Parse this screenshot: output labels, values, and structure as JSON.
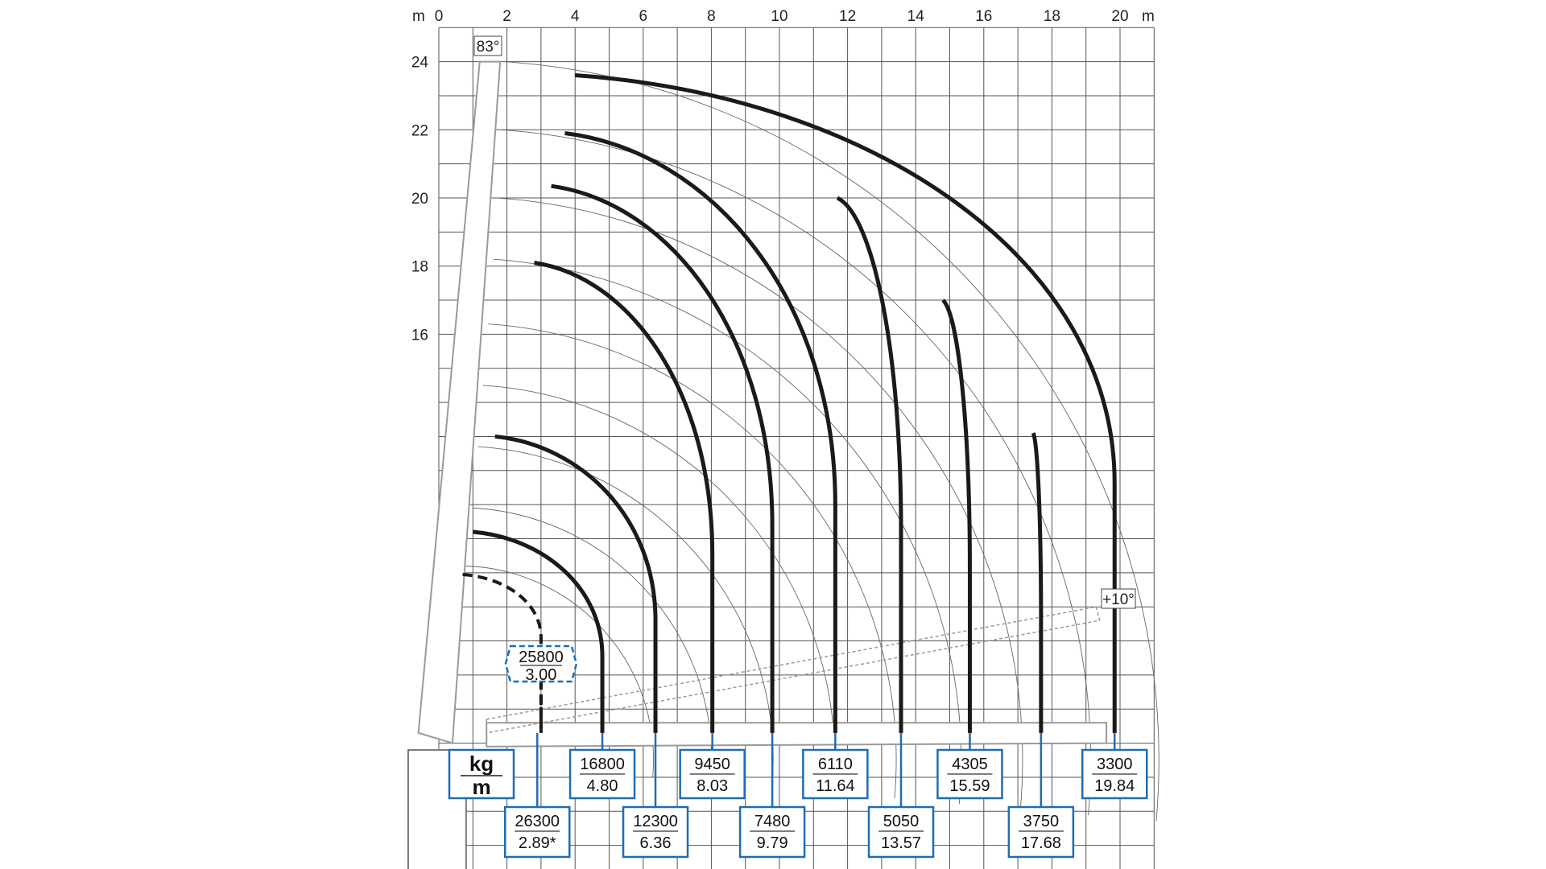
{
  "chart_data": {
    "type": "line",
    "title": "",
    "x_unit_label": "m",
    "y_unit_label": "m",
    "xlim": [
      0,
      21
    ],
    "ylim": [
      0,
      25
    ],
    "grid": true,
    "x_ticks": [
      "0",
      "2",
      "4",
      "6",
      "8",
      "10",
      "12",
      "14",
      "16",
      "18",
      "20"
    ],
    "y_ticks": [
      "16",
      "18",
      "20",
      "22",
      "24"
    ],
    "angle_labels": {
      "max_angle": "83°",
      "min_angle": "+10°"
    },
    "legend": {
      "unit_top": "kg",
      "unit_bottom": "m"
    },
    "colors": {
      "curve": "#1a1a1a",
      "label_box": "#1f6db3",
      "grid": "#555555",
      "boom": "#9a9a9a"
    },
    "load_curves": [
      {
        "load_kg": "25800",
        "reach_m": "3.00",
        "dashed": true,
        "start": [
          0.7,
          8.95
        ],
        "knee_y": 7.1,
        "reach": 3.0
      },
      {
        "load_kg": "26300",
        "reach_m": "2.89*",
        "dashed": false,
        "reach": 2.89,
        "row": 2
      },
      {
        "load_kg": "16800",
        "reach_m": "4.80",
        "start": [
          1.0,
          10.2
        ],
        "reach": 4.8,
        "row": 1
      },
      {
        "load_kg": "12300",
        "reach_m": "6.36",
        "start": [
          1.65,
          13.0
        ],
        "reach": 6.36,
        "row": 2
      },
      {
        "load_kg": "9450",
        "reach_m": "8.03",
        "start": [
          2.8,
          18.1
        ],
        "reach": 8.03,
        "row": 1
      },
      {
        "load_kg": "7480",
        "reach_m": "9.79",
        "start": [
          3.3,
          20.35
        ],
        "reach": 9.79,
        "row": 2
      },
      {
        "load_kg": "6110",
        "reach_m": "11.64",
        "start": [
          3.7,
          21.9
        ],
        "reach": 11.64,
        "row": 1
      },
      {
        "load_kg": "5050",
        "reach_m": "13.57",
        "start": [
          11.7,
          20.0
        ],
        "reach": 13.57,
        "row": 2
      },
      {
        "load_kg": "4305",
        "reach_m": "15.59",
        "start": [
          14.8,
          17.0
        ],
        "reach": 15.59,
        "row": 1
      },
      {
        "load_kg": "3750",
        "reach_m": "17.68",
        "start": [
          17.45,
          13.1
        ],
        "reach": 17.68,
        "row": 2
      },
      {
        "load_kg": "3300",
        "reach_m": "19.84",
        "start": [
          4.0,
          23.6
        ],
        "reach": 19.84,
        "row": 1
      }
    ]
  }
}
